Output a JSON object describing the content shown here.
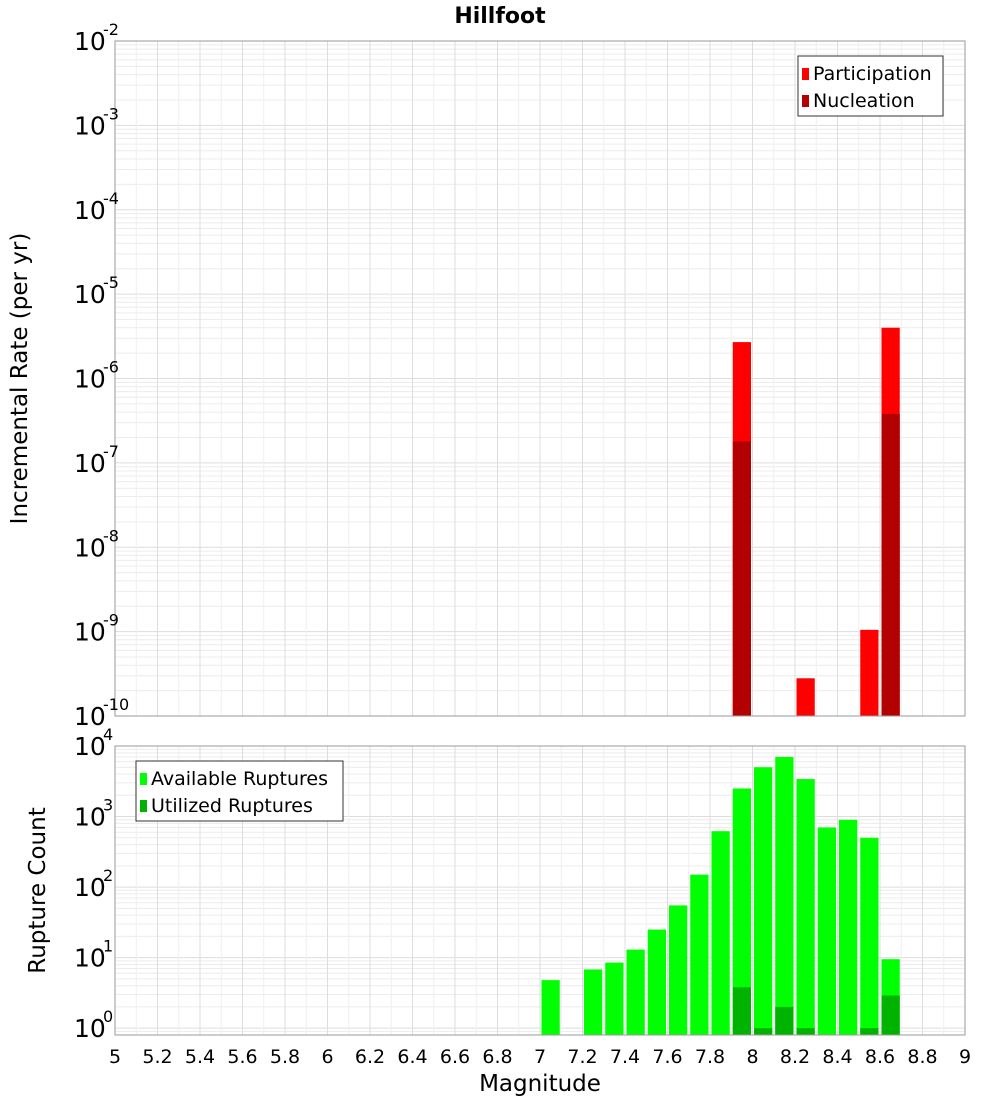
{
  "chart_data": {
    "title": "Hillfoot",
    "xlabel": "Magnitude",
    "xlim": [
      5,
      9
    ],
    "x_ticks": [
      "5",
      "5.2",
      "5.4",
      "5.6",
      "5.8",
      "6",
      "6.2",
      "6.4",
      "6.6",
      "6.8",
      "7",
      "7.2",
      "7.4",
      "7.6",
      "7.8",
      "8",
      "8.2",
      "8.4",
      "8.6",
      "8.8",
      "9"
    ],
    "bin_width": 0.1,
    "grid": true,
    "panels": [
      {
        "type": "bar",
        "ylabel": "Incremental Rate (per yr)",
        "yscale": "log",
        "ylim": [
          1e-10,
          0.01
        ],
        "y_tick_exponents": [
          -10,
          -9,
          -8,
          -7,
          -6,
          -5,
          -4,
          -3,
          -2
        ],
        "legend_position": "top-right",
        "series": [
          {
            "name": "Participation",
            "color": "#ff0000",
            "x": [
              7.95,
              8.25,
              8.55,
              8.65
            ],
            "values": [
              2.7e-06,
              2.8e-10,
              1.05e-09,
              4e-06
            ]
          },
          {
            "name": "Nucleation",
            "color": "#b30000",
            "x": [
              7.95,
              8.65
            ],
            "values": [
              1.8e-07,
              3.8e-07
            ]
          }
        ]
      },
      {
        "type": "bar",
        "ylabel": "Rupture Count",
        "yscale": "log",
        "ylim": [
          0.8,
          10000
        ],
        "y_tick_exponents": [
          0,
          1,
          2,
          3,
          4
        ],
        "legend_position": "top-left",
        "series": [
          {
            "name": "Available Ruptures",
            "color": "#00ff00",
            "x": [
              7.05,
              7.25,
              7.35,
              7.45,
              7.55,
              7.65,
              7.75,
              7.85,
              7.95,
              8.05,
              8.15,
              8.25,
              8.35,
              8.45,
              8.55,
              8.65
            ],
            "values": [
              4.8,
              6.8,
              8.5,
              13,
              25,
              55,
              150,
              620,
              2500,
              5000,
              7000,
              3400,
              700,
              900,
              500,
              9.5
            ]
          },
          {
            "name": "Utilized Ruptures",
            "color": "#00b300",
            "x": [
              7.95,
              8.05,
              8.15,
              8.25,
              8.55,
              8.65
            ],
            "values": [
              3.8,
              1,
              2,
              1,
              1,
              2.9
            ]
          }
        ]
      }
    ]
  }
}
